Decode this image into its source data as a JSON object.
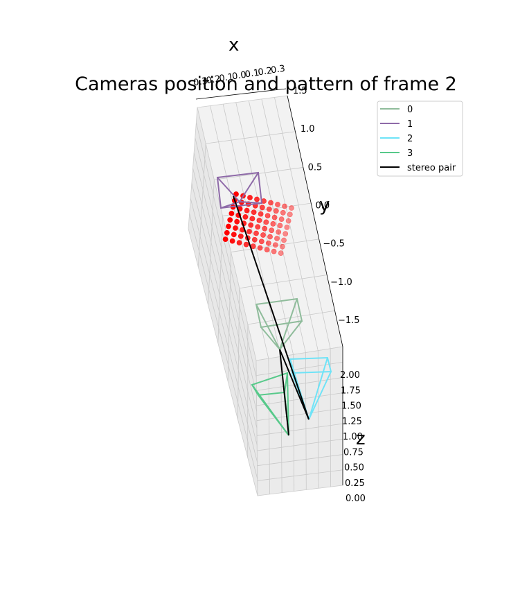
{
  "chart_data": {
    "type": "scatter",
    "projection": "3d",
    "title": "Cameras position and pattern of frame 2",
    "xlabel": "x",
    "ylabel": "y",
    "zlabel": "z",
    "x_ticks": [
      "0.3",
      "0.2",
      "0.1",
      "0.0",
      "0.1",
      "0.2",
      "0.3"
    ],
    "y_ticks": [
      "1.5",
      "1.0",
      "0.5",
      "0.0",
      "−0.5",
      "−1.0",
      "−1.5"
    ],
    "z_ticks": [
      "2.00",
      "1.75",
      "1.50",
      "1.25",
      "1.00",
      "0.75",
      "0.50",
      "0.25",
      "0.00"
    ],
    "legend": {
      "placement": "upper-right",
      "entries": [
        {
          "label": "0",
          "color": "#8fbc9b"
        },
        {
          "label": "1",
          "color": "#8e6aa8"
        },
        {
          "label": "2",
          "color": "#6ee3f7"
        },
        {
          "label": "3",
          "color": "#57c98a"
        },
        {
          "label": "stereo pair",
          "color": "#000000"
        }
      ]
    },
    "pattern": {
      "color": "#ff0000",
      "rows": 8,
      "cols": 9
    },
    "grid": true
  }
}
